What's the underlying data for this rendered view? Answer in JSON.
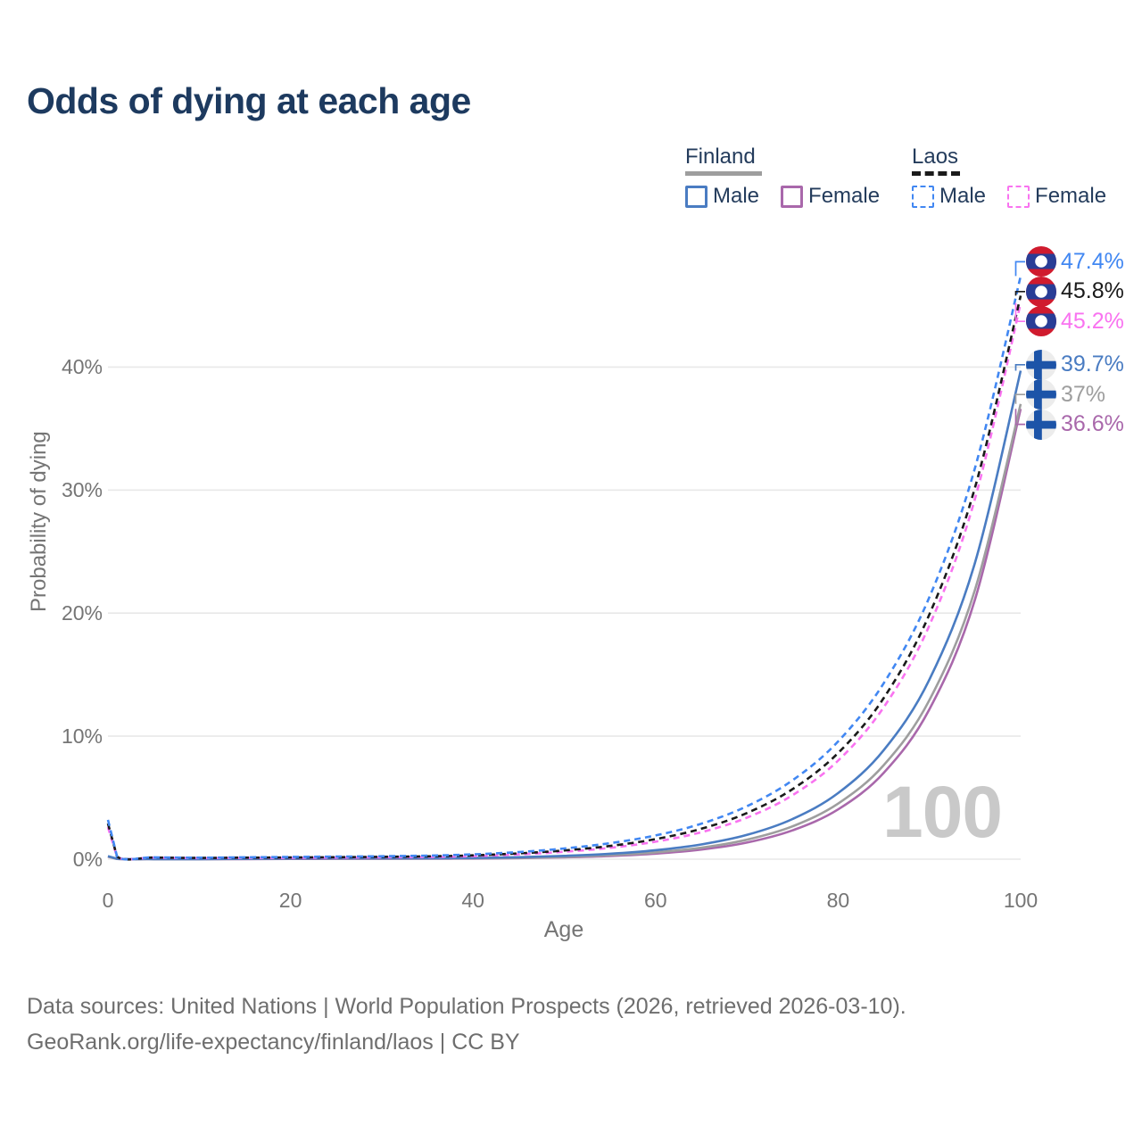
{
  "title": "Odds of dying at each age",
  "watermark": "100",
  "legend": {
    "groups": [
      {
        "label": "Finland",
        "line_style": "solid",
        "line_color": "#9e9e9e",
        "items": [
          {
            "label": "Male",
            "color": "#4a7cc2"
          },
          {
            "label": "Female",
            "color": "#a968ab"
          }
        ]
      },
      {
        "label": "Laos",
        "line_style": "dashed",
        "line_color": "#1a1a1a",
        "items": [
          {
            "label": "Male",
            "color": "#4187f2"
          },
          {
            "label": "Female",
            "color": "#f973f0"
          }
        ]
      }
    ]
  },
  "chart_data": {
    "type": "line",
    "title": "Odds of dying at each age",
    "xlabel": "Age",
    "ylabel": "Probability of dying",
    "xlim": [
      0,
      100
    ],
    "ylim": [
      0,
      48
    ],
    "grid": true,
    "legend_position": "top-right",
    "xticks": [
      0,
      20,
      40,
      60,
      80,
      100
    ],
    "yticks": [
      {
        "value": 0,
        "label": "0%"
      },
      {
        "value": 10,
        "label": "10%"
      },
      {
        "value": 20,
        "label": "20%"
      },
      {
        "value": 30,
        "label": "30%"
      },
      {
        "value": 40,
        "label": "40%"
      }
    ],
    "x": [
      0,
      1,
      5,
      10,
      15,
      20,
      25,
      30,
      35,
      40,
      45,
      50,
      55,
      60,
      65,
      70,
      75,
      80,
      85,
      90,
      95,
      100
    ],
    "series": [
      {
        "name": "Finland Female",
        "country": "Finland",
        "sex": "Female",
        "color": "#a968ab",
        "dashed": false,
        "flag": "finland",
        "end_label": "36.6%",
        "end_value": 36.6,
        "values": [
          0.2,
          0.02,
          0.01,
          0.01,
          0.01,
          0.02,
          0.03,
          0.03,
          0.04,
          0.05,
          0.09,
          0.15,
          0.26,
          0.45,
          0.78,
          1.35,
          2.34,
          4.05,
          7.02,
          12.18,
          21.1,
          36.6
        ]
      },
      {
        "name": "Finland Both sexes",
        "country": "Finland",
        "sex": "Both",
        "color": "#9e9e9e",
        "dashed": false,
        "flag": "finland",
        "end_label": "37%",
        "end_value": 37,
        "values": [
          0.22,
          0.02,
          0.01,
          0.01,
          0.02,
          0.04,
          0.05,
          0.05,
          0.06,
          0.07,
          0.11,
          0.19,
          0.33,
          0.55,
          0.93,
          1.58,
          2.67,
          4.52,
          7.64,
          12.93,
          21.9,
          37
        ]
      },
      {
        "name": "Finland Male",
        "country": "Finland",
        "sex": "Male",
        "color": "#4a7cc2",
        "dashed": false,
        "flag": "finland",
        "end_label": "39.7%",
        "end_value": 39.7,
        "values": [
          0.25,
          0.03,
          0.01,
          0.01,
          0.03,
          0.06,
          0.07,
          0.07,
          0.08,
          0.1,
          0.16,
          0.27,
          0.44,
          0.73,
          1.2,
          1.97,
          3.26,
          5.37,
          8.86,
          14.6,
          24.1,
          39.7
        ]
      },
      {
        "name": "Laos Female",
        "country": "Laos",
        "sex": "Female",
        "color": "#f973f0",
        "dashed": true,
        "flag": "laos",
        "end_label": "45.2%",
        "end_value": 45.2,
        "values": [
          2.6,
          0.18,
          0.12,
          0.09,
          0.1,
          0.11,
          0.13,
          0.15,
          0.18,
          0.25,
          0.39,
          0.6,
          0.92,
          1.42,
          2.19,
          3.37,
          5.2,
          8.01,
          12.35,
          19,
          29.3,
          45.2
        ]
      },
      {
        "name": "Laos Both sexes",
        "country": "Laos",
        "sex": "Both",
        "color": "#1a1a1a",
        "dashed": true,
        "flag": "laos",
        "end_label": "45.8%",
        "end_value": 45.8,
        "values": [
          2.9,
          0.2,
          0.13,
          0.1,
          0.12,
          0.14,
          0.16,
          0.19,
          0.23,
          0.31,
          0.47,
          0.71,
          1.07,
          1.63,
          2.47,
          3.75,
          5.69,
          8.63,
          13.1,
          19.9,
          30.2,
          45.8
        ]
      },
      {
        "name": "Laos Male",
        "country": "Laos",
        "sex": "Male",
        "color": "#4187f2",
        "dashed": true,
        "flag": "laos",
        "end_label": "47.4%",
        "end_value": 47.4,
        "values": [
          3.2,
          0.22,
          0.15,
          0.12,
          0.15,
          0.18,
          0.21,
          0.24,
          0.29,
          0.39,
          0.58,
          0.87,
          1.3,
          1.93,
          2.88,
          4.3,
          6.41,
          9.57,
          14.3,
          21.3,
          31.8,
          47.4
        ]
      }
    ]
  },
  "footer": {
    "line1": "Data sources: United Nations | World Population Prospects (2026, retrieved 2026-03-10).",
    "line2": "GeoRank.org/life-expectancy/finland/laos | CC BY"
  }
}
